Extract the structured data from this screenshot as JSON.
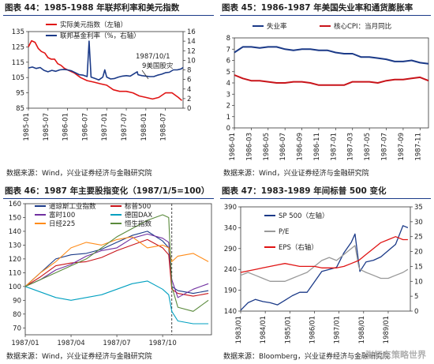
{
  "panels": [
    {
      "title": "图表 44：1985-1988 年联邦利率和美元指数",
      "source": "数据来源：Wind，兴业证券经济与金融研究院",
      "annotation": "1987/10/19美国股灾",
      "chart_data": {
        "type": "line",
        "x_ticks": [
          "1985-01",
          "1985-07",
          "1986-01",
          "1986-07",
          "1987-01",
          "1987-07",
          "1988-01",
          "1988-07"
        ],
        "x_range": [
          1985.0,
          1988.95
        ],
        "y_left": {
          "ticks": [
            85,
            95,
            105,
            115,
            125,
            135
          ],
          "range": [
            85,
            135
          ]
        },
        "y_right": {
          "ticks": [
            0,
            2,
            4,
            6,
            8,
            10,
            12,
            14,
            16
          ],
          "range": [
            0,
            16
          ]
        },
        "series": [
          {
            "name": "实际美元指数（左轴）",
            "axis": "left",
            "color": "#e01414",
            "x": [
              1985.0,
              1985.08,
              1985.17,
              1985.25,
              1985.33,
              1985.42,
              1985.5,
              1985.58,
              1985.67,
              1985.75,
              1985.83,
              1985.92,
              1986.0,
              1986.17,
              1986.33,
              1986.5,
              1986.67,
              1986.83,
              1987.0,
              1987.17,
              1987.33,
              1987.5,
              1987.67,
              1987.83,
              1988.0,
              1988.17,
              1988.33,
              1988.5,
              1988.67,
              1988.83,
              1988.92
            ],
            "y": [
              125,
              129,
              128,
              124,
              122,
              121,
              118,
              117,
              117,
              114,
              113,
              111,
              110,
              108,
              105,
              103,
              102,
              101,
              100,
              97,
              96,
              96,
              95,
              93,
              92,
              91,
              92,
              95,
              95,
              92,
              90
            ]
          },
          {
            "name": "联邦基金利率（%，右轴）",
            "axis": "right",
            "color": "#1b3a88",
            "x": [
              1985.0,
              1985.1,
              1985.2,
              1985.3,
              1985.4,
              1985.5,
              1985.6,
              1985.7,
              1985.8,
              1985.9,
              1986.0,
              1986.1,
              1986.2,
              1986.3,
              1986.4,
              1986.5,
              1986.55,
              1986.6,
              1986.7,
              1986.8,
              1986.9,
              1986.95,
              1987.0,
              1987.1,
              1987.2,
              1987.3,
              1987.4,
              1987.5,
              1987.6,
              1987.7,
              1987.78,
              1987.8,
              1987.9,
              1988.0,
              1988.1,
              1988.2,
              1988.3,
              1988.4,
              1988.5,
              1988.6,
              1988.7,
              1988.8,
              1988.9,
              1988.95
            ],
            "y": [
              8.4,
              8.6,
              8.3,
              8.5,
              7.9,
              7.6,
              7.9,
              7.7,
              8.0,
              8.1,
              8.0,
              7.8,
              7.4,
              7.0,
              6.9,
              6.6,
              14.0,
              6.5,
              6.2,
              5.9,
              6.5,
              8.0,
              6.5,
              6.1,
              6.2,
              6.5,
              6.7,
              6.8,
              6.7,
              7.2,
              7.6,
              7.0,
              6.8,
              6.7,
              6.6,
              6.6,
              6.9,
              7.1,
              7.4,
              7.5,
              8.0,
              8.0,
              8.2,
              8.5
            ]
          }
        ]
      }
    },
    {
      "title": "图表 45：1986-1987 年美国失业率和通货膨胀率",
      "source": "数据来源：Wind，兴业证券经济与金融研究院",
      "chart_data": {
        "type": "line",
        "x_ticks": [
          "1986-01",
          "1986-03",
          "1986-05",
          "1986-07",
          "1986-09",
          "1986-11",
          "1987-01",
          "1987-03",
          "1987-05",
          "1987-07",
          "1987-09",
          "1987-11"
        ],
        "y_left": {
          "ticks": [
            0,
            1,
            2,
            3,
            4,
            5,
            6,
            7,
            8
          ],
          "range": [
            0,
            8
          ]
        },
        "series": [
          {
            "name": "失业率",
            "color": "#1b3a88",
            "x": [
              0,
              1,
              2,
              3,
              4,
              5,
              6,
              7,
              8,
              9,
              10,
              11,
              12,
              13,
              14,
              15,
              16,
              17,
              18,
              19,
              20,
              21,
              22,
              23
            ],
            "y": [
              6.7,
              7.2,
              7.2,
              7.1,
              7.2,
              7.2,
              7.0,
              6.9,
              7.0,
              7.0,
              6.9,
              6.9,
              6.7,
              6.6,
              6.6,
              6.3,
              6.3,
              6.2,
              6.1,
              5.9,
              5.9,
              6.0,
              5.8,
              5.7
            ]
          },
          {
            "name": "核心CPI：当月同比",
            "color": "#c8141a",
            "x": [
              0,
              1,
              2,
              3,
              4,
              5,
              6,
              7,
              8,
              9,
              10,
              11,
              12,
              13,
              14,
              15,
              16,
              17,
              18,
              19,
              20,
              21,
              22,
              23
            ],
            "y": [
              4.7,
              4.4,
              4.2,
              4.2,
              4.1,
              4.0,
              4.0,
              4.1,
              4.1,
              4.0,
              3.8,
              3.8,
              3.8,
              3.8,
              4.1,
              4.1,
              4.1,
              4.0,
              4.2,
              4.3,
              4.3,
              4.4,
              4.5,
              4.2
            ]
          }
        ]
      }
    },
    {
      "title": "图表 46：1987 年主要股指变化（1987/1/5=100）",
      "source": "数据来源：Wind，兴业证券经济与金融研究院",
      "chart_data": {
        "type": "line",
        "x_ticks": [
          "1987/01",
          "1987/04",
          "1987/07",
          "1987/10"
        ],
        "x_range": [
          0,
          12.2
        ],
        "vline_x": 9.6,
        "y_left": {
          "ticks": [
            70,
            80,
            90,
            100,
            110,
            120,
            130,
            140,
            150,
            160
          ],
          "range": [
            65,
            160
          ]
        },
        "series": [
          {
            "name": "道琼斯工业指数",
            "color": "#1b3a88",
            "x": [
              0,
              1,
              2,
              3,
              4,
              5,
              6,
              7,
              8,
              9,
              9.4,
              9.6,
              10,
              11,
              12
            ],
            "y": [
              100,
              110,
              120,
              123,
              124,
              127,
              132,
              137,
              140,
              133,
              128,
              100,
              97,
              95,
              97
            ]
          },
          {
            "name": "标普500",
            "color": "#c8141a",
            "x": [
              0,
              1,
              2,
              3,
              4,
              5,
              6,
              7,
              8,
              9,
              9.4,
              9.6,
              10,
              11,
              12
            ],
            "y": [
              100,
              107,
              115,
              117,
              118,
              121,
              126,
              130,
              134,
              128,
              123,
              98,
              95,
              93,
              95
            ]
          },
          {
            "name": "富时100",
            "color": "#7030a0",
            "x": [
              0,
              1,
              2,
              3,
              4,
              5,
              6,
              7,
              8,
              9,
              9.4,
              9.6,
              10,
              11,
              12
            ],
            "y": [
              100,
              105,
              112,
              116,
              122,
              126,
              128,
              135,
              138,
              135,
              132,
              105,
              92,
              98,
              102
            ]
          },
          {
            "name": "德国DAX",
            "color": "#00a0c0",
            "x": [
              0,
              1,
              2,
              3,
              4,
              5,
              6,
              7,
              8,
              9,
              9.4,
              9.6,
              10,
              11,
              12
            ],
            "y": [
              100,
              96,
              92,
              90,
              92,
              94,
              98,
              102,
              104,
              98,
              94,
              82,
              75,
              73,
              73
            ]
          },
          {
            "name": "日经225",
            "color": "#ff8c1a",
            "x": [
              0,
              1,
              2,
              3,
              4,
              5,
              6,
              7,
              8,
              9,
              9.4,
              9.6,
              10,
              11,
              12
            ],
            "y": [
              100,
              110,
              118,
              128,
              132,
              130,
              134,
              136,
              128,
              130,
              128,
              118,
              122,
              124,
              118
            ]
          },
          {
            "name": "恒生指数",
            "color": "#5a8a3c",
            "x": [
              0,
              1,
              2,
              3,
              4,
              5,
              6,
              7,
              8,
              9,
              9.4,
              9.6,
              10,
              11,
              12
            ],
            "y": [
              100,
              105,
              110,
              115,
              120,
              128,
              136,
              142,
              148,
              152,
              150,
              100,
              85,
              82,
              90
            ]
          }
        ]
      }
    },
    {
      "title": "图表 47：1983-1989 年间标普 500 变化",
      "source": "数据来源：Bloomberg，兴业证券经济与金融研究院",
      "chart_data": {
        "type": "line",
        "x_ticks": [
          "1983/01",
          "1984/01",
          "1985/01",
          "1986/01",
          "1987/01",
          "1988/01",
          "1989/01"
        ],
        "x_range": [
          1983.0,
          1989.9
        ],
        "y_left": {
          "ticks": [
            140,
            190,
            240,
            290,
            340,
            390
          ],
          "range": [
            140,
            390
          ]
        },
        "y_right": {
          "ticks": [
            0,
            5,
            10,
            15,
            20,
            25,
            30,
            35
          ],
          "range": [
            0,
            35
          ]
        },
        "series": [
          {
            "name": "SP 500（左轴）",
            "axis": "left",
            "color": "#1b3a88",
            "x": [
              1983.0,
              1983.3,
              1983.6,
              1983.9,
              1984.2,
              1984.5,
              1984.8,
              1985.1,
              1985.4,
              1985.7,
              1986.0,
              1986.3,
              1986.6,
              1986.9,
              1987.2,
              1987.5,
              1987.65,
              1987.8,
              1987.85,
              1988.1,
              1988.4,
              1988.7,
              1989.0,
              1989.3,
              1989.6,
              1989.8
            ],
            "y": [
              142,
              160,
              168,
              163,
              160,
              155,
              166,
              177,
              185,
              185,
              210,
              235,
              240,
              245,
              280,
              305,
              325,
              255,
              235,
              258,
              262,
              270,
              285,
              300,
              345,
              340
            ]
          },
          {
            "name": "P/E",
            "axis": "right",
            "color": "#999999",
            "x": [
              1983.0,
              1983.3,
              1983.6,
              1983.9,
              1984.2,
              1984.5,
              1984.8,
              1985.1,
              1985.4,
              1985.7,
              1986.0,
              1986.3,
              1986.6,
              1986.9,
              1987.2,
              1987.5,
              1987.65,
              1987.8,
              1987.85,
              1988.1,
              1988.4,
              1988.7,
              1989.0,
              1989.3,
              1989.6,
              1989.8
            ],
            "y": [
              12,
              13,
              12,
              11,
              10,
              10,
              10,
              11,
              12,
              13,
              15,
              17,
              18,
              17,
              19,
              21,
              22,
              15,
              14,
              13,
              12,
              11,
              11,
              12,
              13,
              14
            ]
          },
          {
            "name": "EPS（右轴）",
            "axis": "right",
            "color": "#e01414",
            "x": [
              1983.0,
              1983.3,
              1983.6,
              1983.9,
              1984.2,
              1984.5,
              1984.8,
              1985.1,
              1985.4,
              1985.7,
              1986.0,
              1986.3,
              1986.6,
              1986.9,
              1987.2,
              1987.5,
              1987.8,
              1988.1,
              1988.4,
              1988.7,
              1989.0,
              1989.3,
              1989.6,
              1989.8
            ],
            "y": [
              13,
              13.5,
              14,
              14.5,
              15,
              15.5,
              16,
              15.5,
              15,
              15,
              15,
              14.5,
              14.5,
              14.5,
              15,
              16,
              17,
              19,
              21,
              23,
              24,
              25,
              24,
              24
            ]
          }
        ]
      }
    }
  ],
  "watermark": "张忆东策略世界"
}
